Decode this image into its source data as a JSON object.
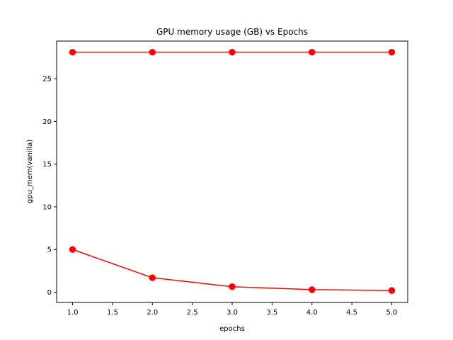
{
  "chart_data": {
    "type": "line",
    "title": "GPU memory usage (GB) vs Epochs",
    "xlabel": "epochs",
    "ylabel": "gpu_mem(vanilla)",
    "xlim": [
      0.8,
      5.2
    ],
    "ylim": [
      -1.2,
      29.4
    ],
    "xticks": [
      1.0,
      1.5,
      2.0,
      2.5,
      3.0,
      3.5,
      4.0,
      4.5,
      5.0
    ],
    "xtick_labels": [
      "1.0",
      "1.5",
      "2.0",
      "2.5",
      "3.0",
      "3.5",
      "4.0",
      "4.5",
      "5.0"
    ],
    "yticks": [
      0,
      5,
      10,
      15,
      20,
      25
    ],
    "ytick_labels": [
      "0",
      "5",
      "10",
      "15",
      "20",
      "25"
    ],
    "grid": false,
    "x": [
      1,
      2,
      3,
      4,
      5
    ],
    "series": [
      {
        "values": [
          28.1,
          28.1,
          28.1,
          28.1,
          28.1
        ],
        "color": "#ff0000",
        "marker": "circle"
      },
      {
        "values": [
          5.0,
          1.7,
          0.65,
          0.3,
          0.2
        ],
        "color": "#ff0000",
        "marker": "circle"
      }
    ]
  }
}
